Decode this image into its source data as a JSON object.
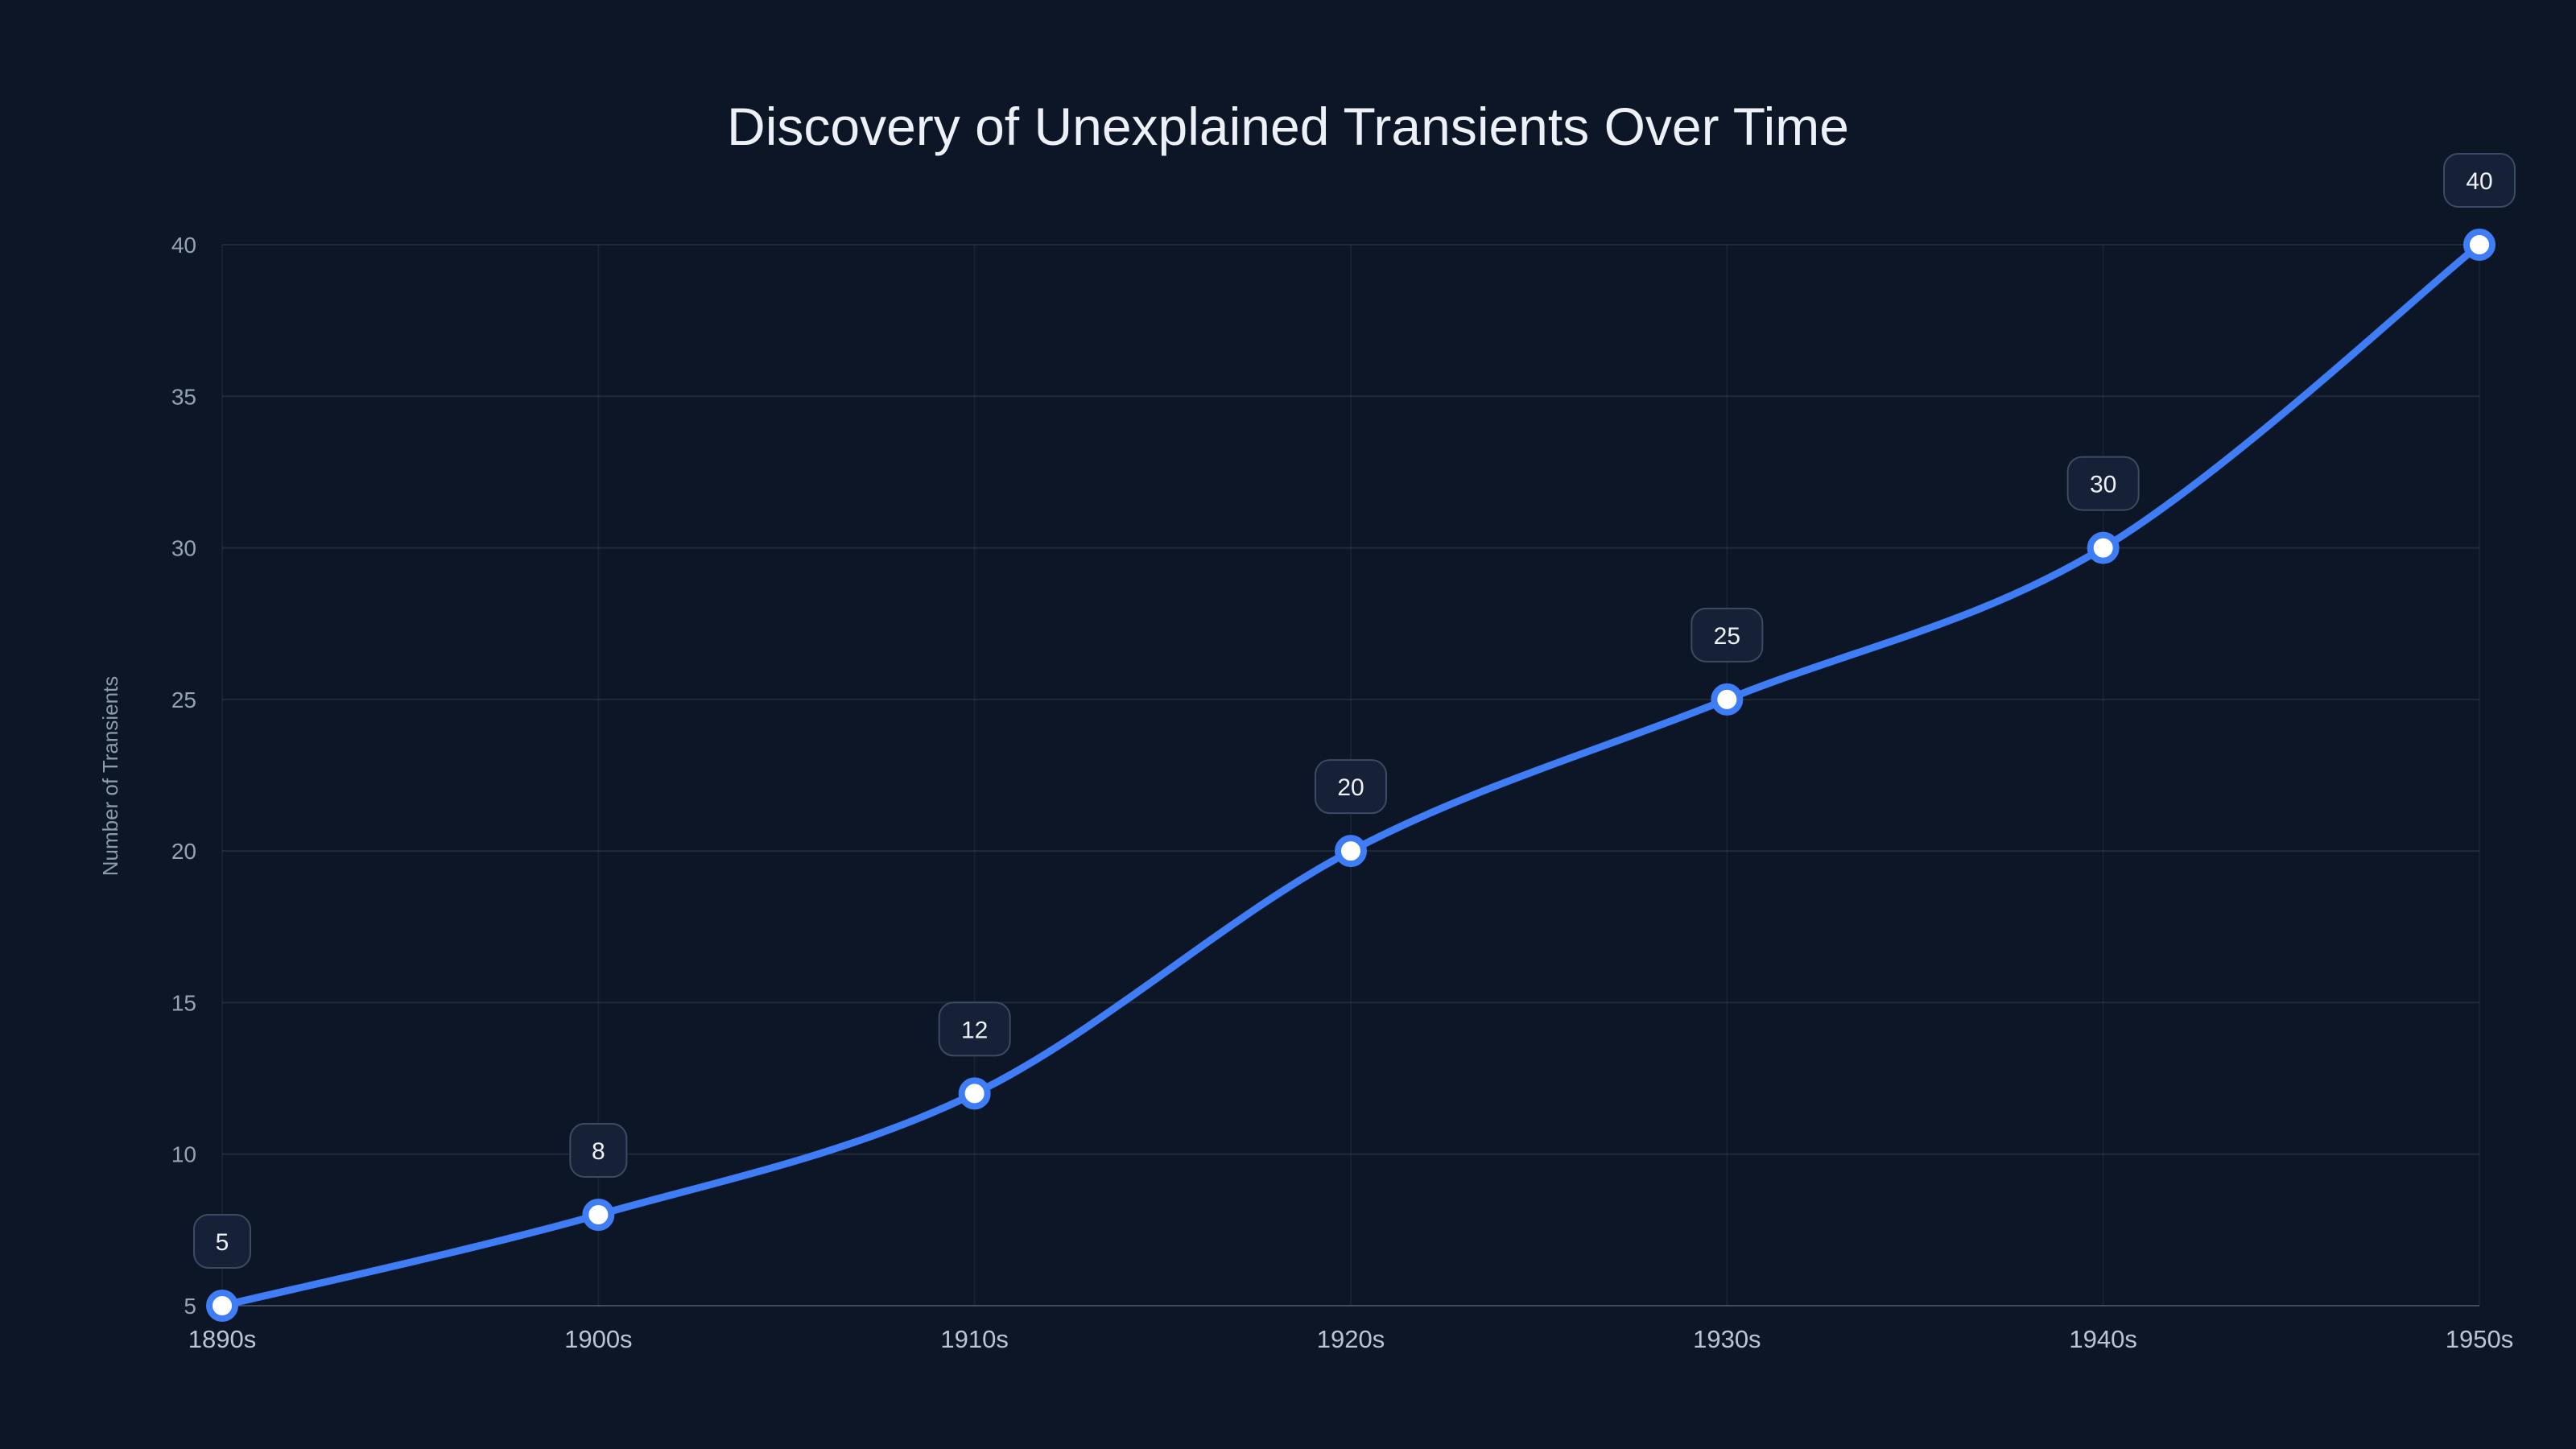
{
  "page": {
    "background": "#0d1626"
  },
  "chart_data": {
    "type": "line",
    "title": "Discovery of Unexplained Transients Over Time",
    "xlabel": "",
    "ylabel": "Number of Transients",
    "categories": [
      "1890s",
      "1900s",
      "1910s",
      "1920s",
      "1930s",
      "1940s",
      "1950s"
    ],
    "series": [
      {
        "name": "Number of Transients",
        "values": [
          5,
          8,
          12,
          20,
          25,
          30,
          40
        ]
      }
    ],
    "data_labels": [
      "5",
      "8",
      "12",
      "20",
      "25",
      "30",
      "40"
    ],
    "ylim": [
      5,
      40
    ],
    "ytick_step": 5,
    "yticks": [
      5,
      10,
      15,
      20,
      25,
      30,
      35,
      40
    ],
    "grid": true,
    "legend": "none",
    "colors": {
      "line": "#3f7df6",
      "point_fill": "#ffffff",
      "grid_h": "rgba(148,163,184,0.14)",
      "grid_v": "rgba(148,163,184,0.08)",
      "axis": "rgba(148,163,184,0.28)",
      "y_tick_text": "#97a2b3",
      "x_tick_text": "#bac4d2",
      "title_text": "#edf1f7",
      "axis_title_text": "#8d99aa",
      "label_box_fill": "#162036",
      "label_box_border": "#3c4a63",
      "label_text": "#eef2f8"
    }
  }
}
